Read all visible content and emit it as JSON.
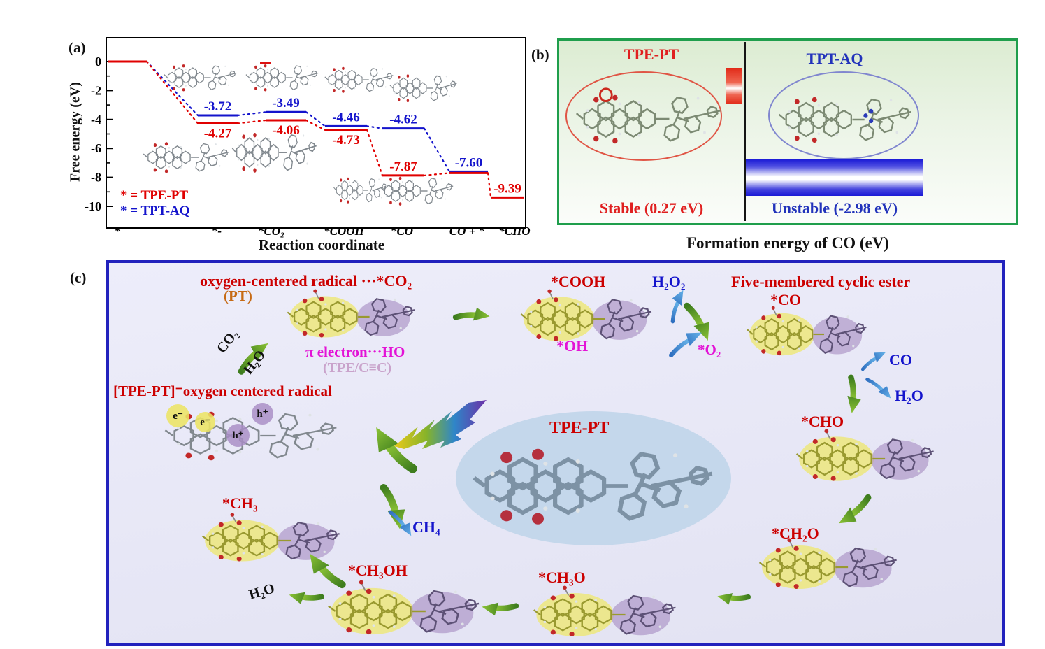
{
  "figure": {
    "panel_a_tag": "(a)",
    "panel_b_tag": "(b)",
    "panel_c_tag": "(c)"
  },
  "chart_data": {
    "type": "line",
    "subtype": "energy-level-step-diagram",
    "title": "",
    "xlabel": "Reaction coordinate",
    "ylabel": "Free energy (eV)",
    "ylim": [
      -11,
      0.8
    ],
    "yticks": [
      0,
      -2,
      -4,
      -6,
      -8,
      -10
    ],
    "grid": false,
    "legend_position": "lower-left-inside",
    "categories": [
      "*",
      "*-",
      "*CO₂",
      "*COOH",
      "*CO",
      "CO + *",
      "*CHO"
    ],
    "series": [
      {
        "name": "TPE-PT",
        "color": "#e00000",
        "values": [
          0,
          -4.27,
          -4.06,
          -4.73,
          -7.87,
          -7.7,
          -9.39
        ],
        "labels": [
          "",
          "-4.27",
          "-4.06",
          "-4.73",
          "-7.87",
          "",
          "-9.39"
        ]
      },
      {
        "name": "TPT-AQ",
        "color": "#1414cc",
        "values": [
          0,
          -3.72,
          -3.49,
          -4.46,
          -4.62,
          -7.6,
          null
        ],
        "labels": [
          "",
          "-3.72",
          "-3.49",
          "-4.46",
          "-4.62",
          "-7.60",
          ""
        ]
      }
    ],
    "legend": [
      "* = TPE-PT",
      "* = TPT-AQ"
    ]
  },
  "panel_b": {
    "left": {
      "title": "TPE-PT",
      "caption": "Stable (0.27 eV)"
    },
    "right": {
      "title": "TPT-AQ",
      "caption": "Unstable (-2.98 eV)"
    },
    "xlabel": "Formation energy of CO (eV)",
    "colors": {
      "border": "#1f9e4c",
      "left_accent": "#e02020",
      "right_accent": "#2233bb"
    }
  },
  "panel_c": {
    "labels": {
      "oxy_radical": "oxygen-centered radical ···*CO₂",
      "pt": "(PT)",
      "pi_electron": "π electron···HO",
      "tpe_cc": "(TPE/C≡C)",
      "co2_in": "CO₂",
      "h2o_in": "H₂O",
      "cooh": "*COOH",
      "oh": "*OH",
      "h2o2": "H₂O₂",
      "o2": "*O₂",
      "five_membered": "Five-membered cyclic ester",
      "co_star": "*CO",
      "co_out": "CO",
      "h2o_out": "H₂O",
      "cho": "*CHO",
      "ch2o": "*CH₂O",
      "ch3o": "*CH₃O",
      "ch3oh": "*CH₃OH",
      "h2o_bottom": "H₂O",
      "ch3": "*CH₃",
      "ch4": "CH₄",
      "tpe_pt_radical": "[TPE-PT]⁻oxygen centered radical",
      "e1": "e⁻",
      "e2": "e⁻",
      "h1": "h⁺",
      "h2": "h⁺",
      "center": "TPE-PT"
    },
    "colors": {
      "red": "#cc0000",
      "blue": "#1414cc",
      "magenta": "#e313d6",
      "orange": "#c66a14",
      "pale_purple": "#c9a3cb",
      "border": "#2222bd",
      "highlight_yellow": "#ede785",
      "highlight_purple": "#a78cc2",
      "center_ellipse": "#c4d7eb",
      "arrow_green": "#6aa52a",
      "arrow_blue": "#4a8fd0"
    }
  }
}
